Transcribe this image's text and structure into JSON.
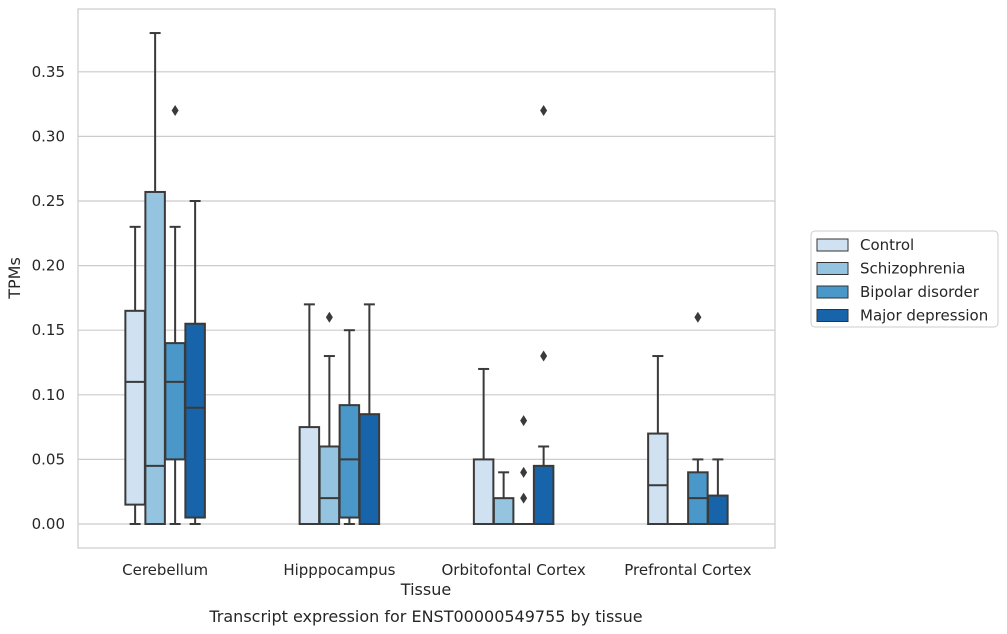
{
  "chart_data": {
    "type": "box",
    "xlabel": "Tissue",
    "ylabel": "TPMs",
    "caption": "Transcript expression for ENST00000549755 by tissue",
    "ylim": [
      -0.018,
      0.398
    ],
    "yticks": [
      "0.00",
      "0.05",
      "0.10",
      "0.15",
      "0.20",
      "0.25",
      "0.30",
      "0.35"
    ],
    "grid": "horizontal",
    "legend_position": "right",
    "categories": [
      "Cerebellum",
      "Hipppocampus",
      "Orbitofontal Cortex",
      "Prefrontal Cortex"
    ],
    "series": [
      {
        "name": "Control",
        "color": "#d0e1f2",
        "boxes": [
          {
            "whislo": 0.0,
            "q1": 0.015,
            "med": 0.11,
            "q3": 0.165,
            "whishi": 0.23,
            "fliers": []
          },
          {
            "whislo": 0.0,
            "q1": 0.0,
            "med": 0.0,
            "q3": 0.075,
            "whishi": 0.17,
            "fliers": []
          },
          {
            "whislo": 0.0,
            "q1": 0.0,
            "med": 0.0,
            "q3": 0.05,
            "whishi": 0.12,
            "fliers": []
          },
          {
            "whislo": 0.0,
            "q1": 0.0,
            "med": 0.03,
            "q3": 0.07,
            "whishi": 0.13,
            "fliers": []
          }
        ]
      },
      {
        "name": "Schizophrenia",
        "color": "#94c4df",
        "boxes": [
          {
            "whislo": 0.0,
            "q1": 0.0,
            "med": 0.045,
            "q3": 0.257,
            "whishi": 0.38,
            "fliers": []
          },
          {
            "whislo": 0.0,
            "q1": 0.0,
            "med": 0.02,
            "q3": 0.06,
            "whishi": 0.13,
            "fliers": [
              0.16
            ]
          },
          {
            "whislo": 0.0,
            "q1": 0.0,
            "med": 0.0,
            "q3": 0.02,
            "whishi": 0.04,
            "fliers": []
          },
          {
            "whislo": 0.0,
            "q1": 0.0,
            "med": 0.0,
            "q3": 0.0,
            "whishi": 0.0,
            "fliers": []
          }
        ]
      },
      {
        "name": "Bipolar disorder",
        "color": "#4a98c9",
        "boxes": [
          {
            "whislo": 0.0,
            "q1": 0.05,
            "med": 0.11,
            "q3": 0.14,
            "whishi": 0.23,
            "fliers": [
              0.32
            ]
          },
          {
            "whislo": 0.0,
            "q1": 0.005,
            "med": 0.05,
            "q3": 0.092,
            "whishi": 0.15,
            "fliers": []
          },
          {
            "whislo": 0.0,
            "q1": 0.0,
            "med": 0.0,
            "q3": 0.0,
            "whishi": 0.0,
            "fliers": [
              0.02,
              0.04,
              0.08
            ]
          },
          {
            "whislo": 0.0,
            "q1": 0.0,
            "med": 0.02,
            "q3": 0.04,
            "whishi": 0.05,
            "fliers": [
              0.16
            ]
          }
        ]
      },
      {
        "name": "Major depression",
        "color": "#1764ab",
        "boxes": [
          {
            "whislo": 0.0,
            "q1": 0.005,
            "med": 0.09,
            "q3": 0.155,
            "whishi": 0.25,
            "fliers": []
          },
          {
            "whislo": 0.0,
            "q1": 0.0,
            "med": 0.0,
            "q3": 0.085,
            "whishi": 0.17,
            "fliers": []
          },
          {
            "whislo": 0.0,
            "q1": 0.0,
            "med": 0.0,
            "q3": 0.045,
            "whishi": 0.06,
            "fliers": [
              0.13,
              0.32
            ]
          },
          {
            "whislo": 0.0,
            "q1": 0.0,
            "med": 0.0,
            "q3": 0.022,
            "whishi": 0.05,
            "fliers": []
          }
        ]
      }
    ]
  }
}
